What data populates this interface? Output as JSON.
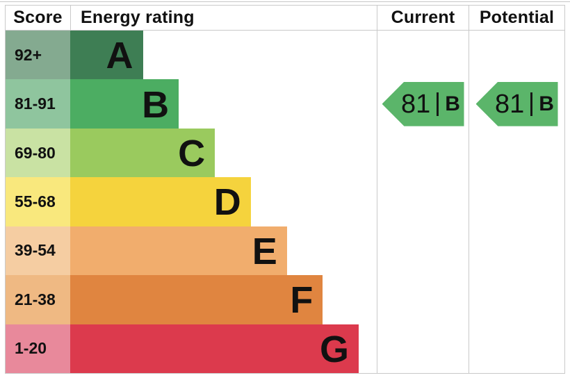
{
  "header": {
    "score_label": "Score",
    "rating_label": "Energy rating",
    "current_label": "Current",
    "potential_label": "Potential"
  },
  "colors": {
    "grid_border": "#c9c9c9",
    "text": "#111111",
    "background": "#ffffff"
  },
  "chart_data": {
    "type": "bar",
    "title": "EPC energy efficiency rating chart",
    "categories": [
      "A",
      "B",
      "C",
      "D",
      "E",
      "F",
      "G"
    ],
    "legend_position": "none",
    "grid": "off",
    "bands": [
      {
        "grade": "A",
        "score_range": "92+",
        "bar_pct": 23.7,
        "bar_color": "#3e7e54",
        "score_cell_color": "#84aa90"
      },
      {
        "grade": "B",
        "score_range": "81-91",
        "bar_pct": 35.4,
        "bar_color": "#4cad62",
        "score_cell_color": "#8fc59e"
      },
      {
        "grade": "C",
        "score_range": "69-80",
        "bar_pct": 47.2,
        "bar_color": "#9aca5e",
        "score_cell_color": "#c9e2a3"
      },
      {
        "grade": "D",
        "score_range": "55-68",
        "bar_pct": 58.9,
        "bar_color": "#f5d33d",
        "score_cell_color": "#f9e87d"
      },
      {
        "grade": "E",
        "score_range": "39-54",
        "bar_pct": 70.7,
        "bar_color": "#f1ad6d",
        "score_cell_color": "#f5cda2"
      },
      {
        "grade": "F",
        "score_range": "21-38",
        "bar_pct": 82.4,
        "bar_color": "#e08540",
        "score_cell_color": "#efb983"
      },
      {
        "grade": "G",
        "score_range": "1-20",
        "bar_pct": 94.1,
        "bar_color": "#dc3a4d",
        "score_cell_color": "#e8899b"
      }
    ],
    "current": {
      "value": "81",
      "grade": "B",
      "band_index": 1,
      "arrow_color": "#5bb56a"
    },
    "potential": {
      "value": "81",
      "grade": "B",
      "band_index": 1,
      "arrow_color": "#5bb56a"
    }
  }
}
